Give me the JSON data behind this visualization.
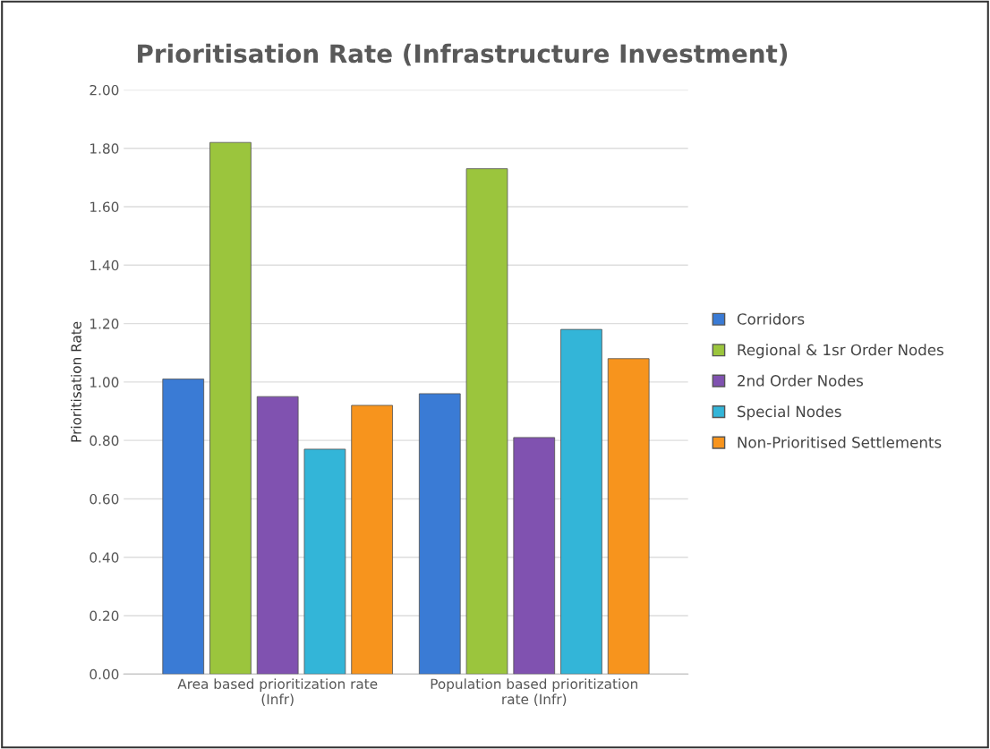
{
  "chart_data": {
    "type": "bar",
    "title": "Prioritisation Rate (Infrastructure Investment)",
    "ylabel": "Prioritisation Rate",
    "categories": [
      "Area based prioritization rate (Infr)",
      "Population based prioritization rate (Infr)"
    ],
    "series": [
      {
        "name": "Corridors",
        "color": "#3a7bd5",
        "values": [
          1.01,
          0.96
        ]
      },
      {
        "name": "Regional & 1sr Order Nodes",
        "color": "#9bc53d",
        "values": [
          1.82,
          1.73
        ]
      },
      {
        "name": "2nd Order Nodes",
        "color": "#8052b0",
        "values": [
          0.95,
          0.81
        ]
      },
      {
        "name": "Special Nodes",
        "color": "#33b5d8",
        "values": [
          0.77,
          1.18
        ]
      },
      {
        "name": "Non-Prioritised Settlements",
        "color": "#f7941d",
        "values": [
          0.92,
          1.08
        ]
      }
    ],
    "ylim": [
      0,
      2
    ],
    "yticks": [
      {
        "value": 0,
        "label": "0.00"
      },
      {
        "value": 0.2,
        "label": "0.20"
      },
      {
        "value": 0.4,
        "label": "0.40"
      },
      {
        "value": 0.6,
        "label": "0.60"
      },
      {
        "value": 0.8,
        "label": "0.80"
      },
      {
        "value": 1.0,
        "label": "1.00"
      },
      {
        "value": 1.2,
        "label": "1.20"
      },
      {
        "value": 1.4,
        "label": "1.40"
      },
      {
        "value": 1.6,
        "label": "1.60"
      },
      {
        "value": 1.8,
        "label": "1.80"
      },
      {
        "value": 2.0,
        "label": "2.00"
      }
    ],
    "grid": "y",
    "legend": "right"
  }
}
